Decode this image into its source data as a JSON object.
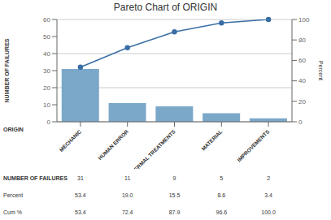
{
  "chart_data": {
    "type": "bar",
    "title": "Pareto Chart of ORIGIN",
    "xlabel": "ORIGIN",
    "ylabel": "NUMBER OF FAILURES",
    "y2label": "Percent",
    "categories": [
      "MECHANIC",
      "HUMAN ERROR",
      "THERMAL TREATMENTS",
      "MATERIAL",
      "IMPROVEMENTS"
    ],
    "series": [
      {
        "type": "bar",
        "color": "#7BA7C9",
        "values": [
          31,
          11,
          9,
          5,
          2
        ]
      },
      {
        "type": "line",
        "axis": "y2",
        "color": "#3A6EA5",
        "marker": "circle",
        "values": [
          53.4,
          72.4,
          87.9,
          96.6,
          100.0
        ]
      }
    ],
    "ylim": [
      0,
      60
    ],
    "yticks": [
      0,
      10,
      20,
      30,
      40,
      50,
      60
    ],
    "y2lim": [
      0,
      100
    ],
    "y2ticks": [
      0,
      20,
      40,
      60,
      80,
      100
    ],
    "grid": true,
    "table": {
      "row_labels": [
        "NUMBER OF FAILURES",
        "Percent",
        "Cum %"
      ],
      "values": [
        [
          "31",
          "11",
          "9",
          "5",
          "2"
        ],
        [
          "53.4",
          "19.0",
          "15.5",
          "8.6",
          "3.4"
        ],
        [
          "53.4",
          "72.4",
          "87.9",
          "96.6",
          "100.0"
        ]
      ]
    }
  }
}
